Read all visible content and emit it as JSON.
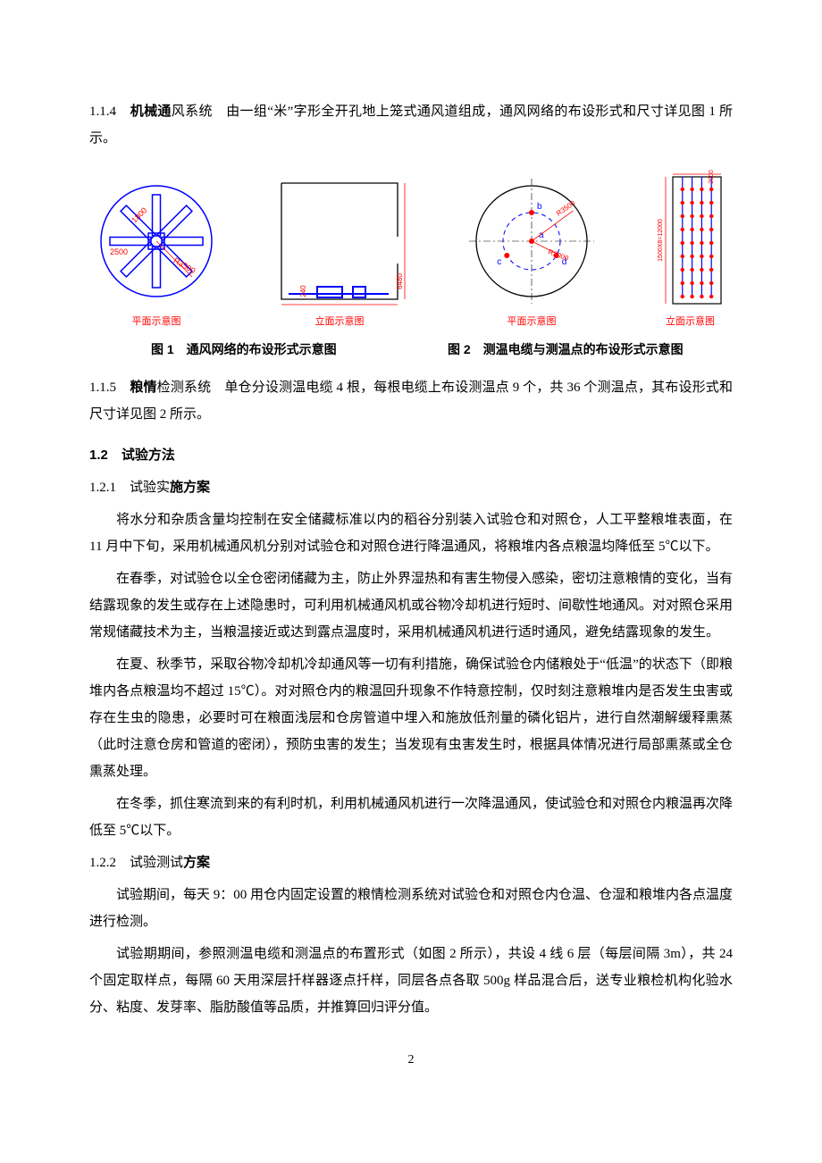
{
  "colors": {
    "text": "#000000",
    "background": "#ffffff",
    "diagram_blue": "#0000ff",
    "diagram_red": "#ff0000",
    "diagram_black": "#000000"
  },
  "typography": {
    "body_family": "SimSun",
    "heading_family": "SimHei",
    "body_size_pt": 11,
    "heading_size_pt": 11,
    "caption_size_pt": 8
  },
  "sec114": {
    "num": "1.1.4",
    "label_bold": "机械通",
    "label_rest": "风系统",
    "body": "　由一组“米”字形全开孔地上笼式通风道组成，通风网络的布设形式和尺寸详见图 1 所示。"
  },
  "fig1": {
    "plan": {
      "caption": "平面示意图",
      "circle_stroke": "#0000ff",
      "star_stroke": "#0000ff",
      "dim_color": "#ff0000",
      "dim_left": "2500",
      "dim_diag": "1800",
      "dim_radius": "R3500"
    },
    "elev": {
      "caption": "立面示意图",
      "frame_stroke": "#000000",
      "duct_stroke": "#0000ff",
      "dim_color": "#ff0000",
      "dim_h": "240",
      "dim_bottom": "6480"
    }
  },
  "fig2": {
    "plan": {
      "caption": "平面示意图",
      "outer_stroke": "#000000",
      "inner_stroke": "#0000ff",
      "point_fill": "#ff0000",
      "labels": {
        "a": "a",
        "b": "b",
        "c": "c",
        "d": "d"
      },
      "dim_outer": "R3500",
      "dim_inner": "R2000",
      "label_color": "#0000ff"
    },
    "elev": {
      "caption": "立面示意图",
      "frame_stroke": "#000000",
      "cable_stroke": "#0000ff",
      "point_fill": "#ff0000",
      "dim_color": "#ff0000",
      "dim_top": "2000",
      "dim_v": "1500X8=12000",
      "cable_count": 4,
      "points_per_cable": 9
    }
  },
  "fig_titles": {
    "left": "图 1　通风网络的布设形式示意图",
    "right": "图 2　测温电缆与测温点的布设形式示意图"
  },
  "sec115": {
    "num": "1.1.5",
    "label_bold": "粮情",
    "label_mid": "检测系",
    "label_rest": "统",
    "body": "　单仓分设测温电缆 4 根，每根电缆上布设测温点 9 个，共 36 个测温点，其布设形式和尺寸详见图 2 所示。"
  },
  "sec12": {
    "num": "1.2",
    "title": "试验方法"
  },
  "sec121": {
    "num": "1.2.1",
    "title_a": "试验实",
    "title_bold": "施方案",
    "p1": "将水分和杂质含量均控制在安全储藏标准以内的稻谷分别装入试验仓和对照仓，人工平整粮堆表面，在 11 月中下旬，采用机械通风机分别对试验仓和对照仓进行降温通风，将粮堆内各点粮温均降低至 5℃以下。",
    "p2": "在春季，对试验仓以全仓密闭储藏为主，防止外界湿热和有害生物侵入感染，密切注意粮情的变化，当有结露现象的发生或存在上述隐患时，可利用机械通风机或谷物冷却机进行短时、间歇性地通风。对对照仓采用常规储藏技术为主，当粮温接近或达到露点温度时，采用机械通风机进行适时通风，避免结露现象的发生。",
    "p3": "在夏、秋季节，采取谷物冷却机冷却通风等一切有利措施，确保试验仓内储粮处于“低温”的状态下（即粮堆内各点粮温均不超过 15℃）。对对照仓内的粮温回升现象不作特意控制，仅时刻注意粮堆内是否发生虫害或存在生虫的隐患，必要时可在粮面浅层和仓房管道中埋入和施放低剂量的磷化铝片，进行自然潮解缓释熏蒸（此时注意仓房和管道的密闭），预防虫害的发生；当发现有虫害发生时，根据具体情况进行局部熏蒸或全仓熏蒸处理。",
    "p4": "在冬季，抓住寒流到来的有利时机，利用机械通风机进行一次降温通风，使试验仓和对照仓内粮温再次降低至 5℃以下。"
  },
  "sec122": {
    "num": "1.2.2",
    "title_a": "试验测试",
    "title_bold": "方案",
    "p1": "试验期间，每天 9：00 用仓内固定设置的粮情检测系统对试验仓和对照仓内仓温、仓湿和粮堆内各点温度进行检测。",
    "p2": "试验期期间，参照测温电缆和测温点的布置形式（如图 2 所示），共设 4 线 6 层（每层间隔 3m），共 24 个固定取样点，每隔 60 天用深层扦样器逐点扦样，同层各点各取 500g 样品混合后，送专业粮检机构化验水分、粘度、发芽率、脂肪酸值等品质，并推算回归评分值。"
  },
  "page_number": "2"
}
